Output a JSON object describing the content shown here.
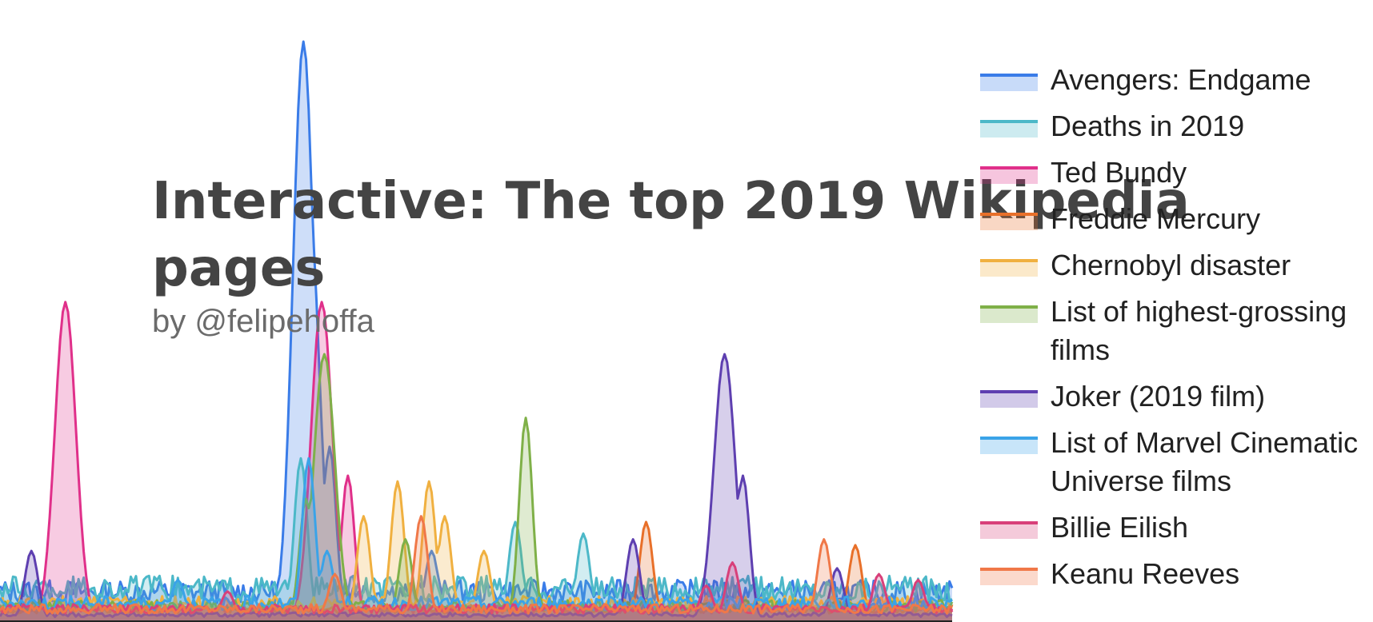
{
  "chart_data": {
    "type": "area",
    "title": "Interactive: The top 2019 Wikipedia pages",
    "subtitle": "by @felipehoffa",
    "xlabel": "",
    "ylabel": "",
    "x_range": [
      "2019-01-01",
      "2019-12-31"
    ],
    "ylim": [
      0,
      100
    ],
    "grid": false,
    "legend_position": "right",
    "series": [
      {
        "name": "Avengers: Endgame",
        "color": "#3a7ce8",
        "peaks": [
          {
            "date": "2019-04-27",
            "value": 100
          },
          {
            "date": "2019-04-29",
            "value": 73
          },
          {
            "date": "2019-05-07",
            "value": 30
          },
          {
            "date": "2019-06-15",
            "value": 12
          }
        ],
        "base": 5
      },
      {
        "name": "Deaths in 2019",
        "color": "#4cb8c8",
        "peaks": [
          {
            "date": "2019-04-26",
            "value": 28
          },
          {
            "date": "2019-07-17",
            "value": 17
          },
          {
            "date": "2019-08-12",
            "value": 15
          }
        ],
        "base": 5.5
      },
      {
        "name": "Ted Bundy",
        "color": "#e0308a",
        "peaks": [
          {
            "date": "2019-01-26",
            "value": 55
          },
          {
            "date": "2019-05-04",
            "value": 55
          },
          {
            "date": "2019-05-14",
            "value": 25
          }
        ],
        "base": 2
      },
      {
        "name": "Freddie Mercury",
        "color": "#e8702a",
        "peaks": [
          {
            "date": "2019-09-05",
            "value": 17
          },
          {
            "date": "2019-11-24",
            "value": 13
          }
        ],
        "base": 2
      },
      {
        "name": "Chernobyl disaster",
        "color": "#f0b040",
        "peaks": [
          {
            "date": "2019-05-20",
            "value": 18
          },
          {
            "date": "2019-06-02",
            "value": 24
          },
          {
            "date": "2019-06-14",
            "value": 24
          },
          {
            "date": "2019-06-20",
            "value": 18
          },
          {
            "date": "2019-07-05",
            "value": 12
          }
        ],
        "base": 3
      },
      {
        "name": "List of highest-grossing films",
        "color": "#7fb048",
        "peaks": [
          {
            "date": "2019-05-05",
            "value": 46
          },
          {
            "date": "2019-04-28",
            "value": 21
          },
          {
            "date": "2019-07-21",
            "value": 35
          },
          {
            "date": "2019-06-05",
            "value": 14
          }
        ],
        "base": 2.5
      },
      {
        "name": "Joker (2019 film)",
        "color": "#5e3fb0",
        "peaks": [
          {
            "date": "2019-10-05",
            "value": 46
          },
          {
            "date": "2019-10-12",
            "value": 25
          },
          {
            "date": "2019-08-31",
            "value": 14
          },
          {
            "date": "2019-11-17",
            "value": 9
          },
          {
            "date": "2019-01-13",
            "value": 12
          }
        ],
        "base": 1
      },
      {
        "name": "List of Marvel Cinematic Universe films",
        "color": "#3aa3e8",
        "peaks": [
          {
            "date": "2019-04-29",
            "value": 28
          },
          {
            "date": "2019-05-06",
            "value": 12
          },
          {
            "date": "2019-03-10",
            "value": 7
          }
        ],
        "base": 3
      },
      {
        "name": "Billie Eilish",
        "color": "#d8407a",
        "peaks": [
          {
            "date": "2019-09-28",
            "value": 6
          },
          {
            "date": "2019-10-08",
            "value": 10
          },
          {
            "date": "2019-12-03",
            "value": 8
          },
          {
            "date": "2019-12-18",
            "value": 7
          },
          {
            "date": "2019-03-29",
            "value": 5
          }
        ],
        "base": 2
      },
      {
        "name": "Keanu Reeves",
        "color": "#f07848",
        "peaks": [
          {
            "date": "2019-06-11",
            "value": 18
          },
          {
            "date": "2019-11-12",
            "value": 14
          },
          {
            "date": "2019-05-09",
            "value": 8
          }
        ],
        "base": 2
      }
    ]
  }
}
